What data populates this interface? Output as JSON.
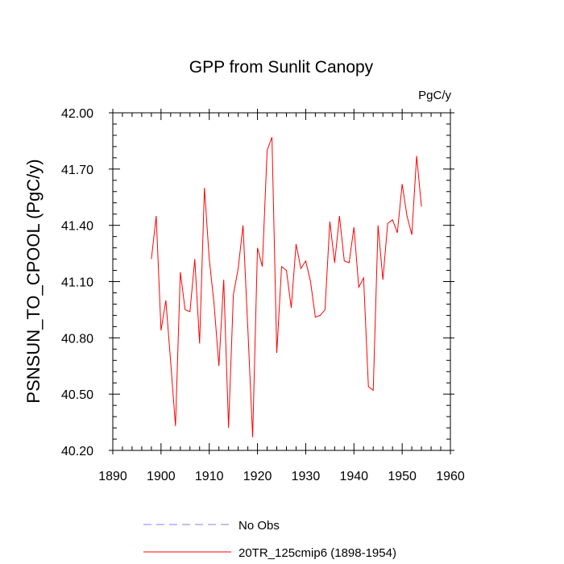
{
  "chart_data": {
    "type": "line",
    "title": "GPP from Sunlit Canopy",
    "units": "PgC/y",
    "ylabel": "PSNSUN_TO_CPOOL  (PgC/y)",
    "xlabel": "",
    "xlim": [
      1890,
      1960
    ],
    "ylim": [
      40.2,
      42.0
    ],
    "x_ticks": [
      1890,
      1900,
      1910,
      1920,
      1930,
      1940,
      1950,
      1960
    ],
    "x_tick_labels": [
      "1890",
      "1900",
      "1910",
      "1920",
      "1930",
      "1940",
      "1950",
      "1960"
    ],
    "y_ticks": [
      40.2,
      40.5,
      40.8,
      41.1,
      41.4,
      41.7,
      42.0
    ],
    "y_tick_labels": [
      "40.20",
      "40.50",
      "40.80",
      "41.10",
      "41.40",
      "41.70",
      "42.00"
    ],
    "grid": false,
    "legend_position": "bottom",
    "series": [
      {
        "name": "No Obs",
        "color": "#8080ff",
        "style": "dashed",
        "x": [],
        "values": []
      },
      {
        "name": "20TR_125cmip6 (1898-1954)",
        "color": "#ff0000",
        "style": "solid",
        "x": [
          1898,
          1899,
          1900,
          1901,
          1902,
          1903,
          1904,
          1905,
          1906,
          1907,
          1908,
          1909,
          1910,
          1911,
          1912,
          1913,
          1914,
          1915,
          1916,
          1917,
          1918,
          1919,
          1920,
          1921,
          1922,
          1923,
          1924,
          1925,
          1926,
          1927,
          1928,
          1929,
          1930,
          1931,
          1932,
          1933,
          1934,
          1935,
          1936,
          1937,
          1938,
          1939,
          1940,
          1941,
          1942,
          1943,
          1944,
          1945,
          1946,
          1947,
          1948,
          1949,
          1950,
          1951,
          1952,
          1953,
          1954
        ],
        "values": [
          41.22,
          41.45,
          40.84,
          41.0,
          40.67,
          40.33,
          41.15,
          40.95,
          40.94,
          41.22,
          40.77,
          41.6,
          41.22,
          40.98,
          40.65,
          41.11,
          40.32,
          41.03,
          41.17,
          41.4,
          40.85,
          40.27,
          41.28,
          41.18,
          41.8,
          41.87,
          40.72,
          41.18,
          41.16,
          40.96,
          41.3,
          41.17,
          41.21,
          41.1,
          40.91,
          40.92,
          40.95,
          41.42,
          41.2,
          41.45,
          41.21,
          41.2,
          41.39,
          41.07,
          41.12,
          40.54,
          40.52,
          41.4,
          41.11,
          41.41,
          41.43,
          41.36,
          41.62,
          41.45,
          41.35,
          41.77,
          41.5
        ]
      }
    ]
  }
}
